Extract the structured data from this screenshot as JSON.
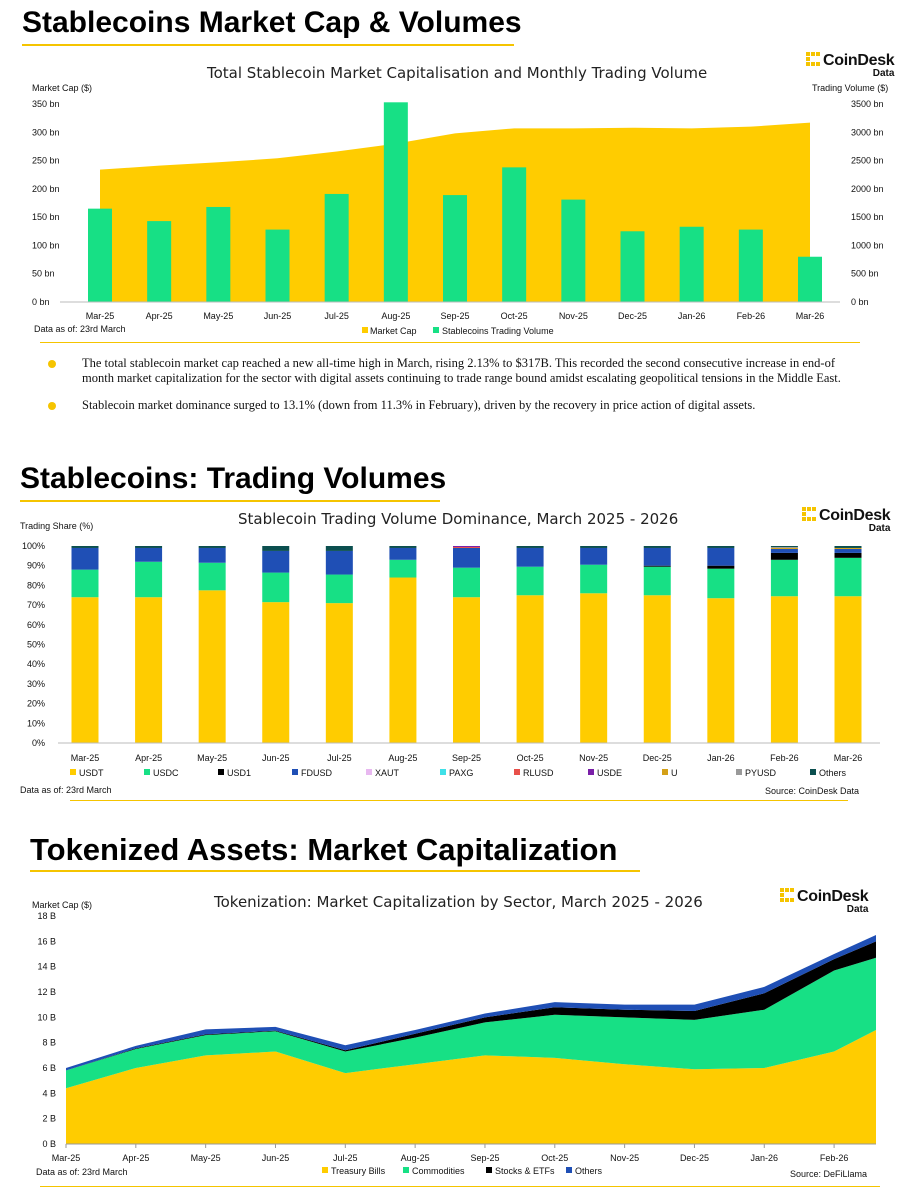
{
  "sections": {
    "s1_title": "Stablecoins Market Cap & Volumes",
    "s2_title": "Stablecoins: Trading Volumes",
    "s3_title": "Tokenized Assets: Market Capitalization"
  },
  "logo": {
    "name": "CoinDesk",
    "sub": "Data"
  },
  "colors": {
    "yellow": "#FFCC00",
    "green": "#17E085",
    "blue": "#1F4FB5",
    "black": "#000000",
    "accent": "#F5C400"
  },
  "bullets": [
    "The total stablecoin market cap reached a new all-time high in March, rising 2.13% to $317B. This recorded the second consecutive increase in end-of month market capitalization for the sector with digital assets continuing to trade range bound amidst escalating geopolitical tensions in the Middle East.",
    "Stablecoin market dominance surged to 13.1% (down from 11.3% in February), driven by the recovery in price action of digital assets."
  ],
  "chart_data": [
    {
      "type": "bar",
      "title": "Total Stablecoin Market Capitalisation and Monthly Trading Volume",
      "ylabel": "Market Cap ($)",
      "y2label": "Trading Volume ($)",
      "note": "Data as of: 23rd March",
      "ylim": [
        0,
        350
      ],
      "y2lim": [
        0,
        3500
      ],
      "yticks": [
        "0 bn",
        "50 bn",
        "100 bn",
        "150 bn",
        "200 bn",
        "250 bn",
        "300 bn",
        "350 bn"
      ],
      "y2ticks": [
        "0 bn",
        "500 bn",
        "1000 bn",
        "1500 bn",
        "2000 bn",
        "2500 bn",
        "3000 bn",
        "3500 bn"
      ],
      "categories": [
        "Mar-25",
        "Apr-25",
        "May-25",
        "Jun-25",
        "Jul-25",
        "Aug-25",
        "Sep-25",
        "Oct-25",
        "Nov-25",
        "Dec-25",
        "Jan-26",
        "Feb-26",
        "Mar-26"
      ],
      "series": [
        {
          "name": "Market Cap",
          "type": "area",
          "axis": "left",
          "values": [
            234,
            241,
            247,
            254,
            266,
            280,
            298,
            307,
            307,
            308,
            307,
            310,
            317
          ]
        },
        {
          "name": "Stablecoins Trading Volume",
          "type": "bar",
          "axis": "right",
          "values": [
            1650,
            1430,
            1680,
            1280,
            1910,
            3530,
            1890,
            2380,
            1810,
            1250,
            1330,
            1280,
            800
          ]
        }
      ]
    },
    {
      "type": "bar",
      "stacked": true,
      "title": "Stablecoin Trading Volume Dominance, March 2025 - 2026",
      "ylabel": "Trading Share (%)",
      "note": "Data as of: 23rd March",
      "source": "Source: CoinDesk Data",
      "ylim": [
        0,
        100
      ],
      "yticks": [
        "0%",
        "10%",
        "20%",
        "30%",
        "40%",
        "50%",
        "60%",
        "70%",
        "80%",
        "90%",
        "100%"
      ],
      "categories": [
        "Mar-25",
        "Apr-25",
        "May-25",
        "Jun-25",
        "Jul-25",
        "Aug-25",
        "Sep-25",
        "Oct-25",
        "Nov-25",
        "Dec-25",
        "Jan-26",
        "Feb-26",
        "Mar-26"
      ],
      "series": [
        {
          "name": "USDT",
          "color": "#FFCC00",
          "values": [
            74,
            74,
            77.5,
            71.5,
            71,
            84,
            74,
            75,
            76,
            75,
            73.5,
            74.5,
            74.5
          ]
        },
        {
          "name": "USDC",
          "color": "#17E085",
          "values": [
            14,
            18,
            14,
            15,
            14.5,
            9,
            15,
            14.5,
            14.5,
            14.5,
            15,
            18.5,
            19.5
          ]
        },
        {
          "name": "USD1",
          "color": "#000000",
          "values": [
            0,
            0,
            0,
            0,
            0,
            0,
            0,
            0,
            0,
            0.5,
            1.5,
            3.5,
            2.5
          ]
        },
        {
          "name": "FDUSD",
          "color": "#1F4FB5",
          "values": [
            11,
            7,
            7.5,
            11,
            12,
            6,
            10,
            9.5,
            8.5,
            9,
            9,
            2,
            2
          ]
        },
        {
          "name": "XAUT",
          "color": "#E8B8F0",
          "values": [
            0,
            0,
            0,
            0,
            0,
            0,
            0,
            0,
            0,
            0,
            0,
            0,
            0
          ]
        },
        {
          "name": "PAXG",
          "color": "#3FE0E8",
          "values": [
            0,
            0,
            0,
            0,
            0,
            0,
            0,
            0,
            0,
            0,
            0,
            0,
            0
          ]
        },
        {
          "name": "RLUSD",
          "color": "#E8504A",
          "values": [
            0,
            0,
            0,
            0,
            0,
            0,
            0.5,
            0,
            0,
            0,
            0,
            0,
            0
          ]
        },
        {
          "name": "USDE",
          "color": "#7A1FA8",
          "values": [
            0,
            0,
            0,
            0,
            0,
            0,
            0.5,
            0,
            0,
            0,
            0,
            0,
            0
          ]
        },
        {
          "name": "U",
          "color": "#D4A017",
          "values": [
            0,
            0,
            0,
            0,
            0,
            0,
            0,
            0,
            0,
            0,
            0,
            0.5,
            0.5
          ]
        },
        {
          "name": "PYUSD",
          "color": "#999999",
          "values": [
            0,
            0,
            0,
            0,
            0,
            0,
            0,
            0,
            0,
            0,
            0,
            0.5,
            0
          ]
        },
        {
          "name": "Others",
          "color": "#0B4F4F",
          "values": [
            1,
            1,
            1,
            2.5,
            2.5,
            1,
            0,
            1,
            1,
            1,
            1,
            0.5,
            1
          ]
        }
      ]
    },
    {
      "type": "area",
      "stacked": true,
      "title": "Tokenization: Market Capitalization by Sector, March 2025 - 2026",
      "ylabel": "Market Cap ($)",
      "note": "Data as of: 23rd March",
      "source": "Source: DeFiLlama",
      "ylim": [
        0,
        18
      ],
      "yticks": [
        "0 B",
        "2 B",
        "4 B",
        "6 B",
        "8 B",
        "10 B",
        "12 B",
        "14 B",
        "16 B",
        "18 B"
      ],
      "categories": [
        "Mar-25",
        "Apr-25",
        "May-25",
        "Jun-25",
        "Jul-25",
        "Aug-25",
        "Sep-25",
        "Oct-25",
        "Nov-25",
        "Dec-25",
        "Jan-26",
        "Feb-26"
      ],
      "x": [
        0,
        1,
        2,
        3,
        4,
        5,
        6,
        7,
        8,
        9,
        10,
        11,
        11.6
      ],
      "series": [
        {
          "name": "Treasury Bills",
          "color": "#FFCC00",
          "values": [
            4.4,
            6.0,
            7.0,
            7.3,
            5.6,
            6.3,
            7.0,
            6.8,
            6.3,
            5.9,
            6.0,
            7.3,
            9.0
          ]
        },
        {
          "name": "Commodities",
          "color": "#17E085",
          "values": [
            1.4,
            1.5,
            1.6,
            1.6,
            1.7,
            2.1,
            2.6,
            3.4,
            3.7,
            3.9,
            4.6,
            6.4,
            5.7
          ]
        },
        {
          "name": "Stocks & ETFs",
          "color": "#000000",
          "values": [
            0.0,
            0.05,
            0.05,
            0.05,
            0.1,
            0.3,
            0.4,
            0.6,
            0.6,
            0.7,
            1.3,
            0.9,
            1.3
          ]
        },
        {
          "name": "Others",
          "color": "#1F4FB5",
          "values": [
            0.2,
            0.2,
            0.4,
            0.3,
            0.4,
            0.3,
            0.3,
            0.4,
            0.4,
            0.5,
            0.5,
            0.4,
            0.5
          ]
        }
      ]
    }
  ]
}
